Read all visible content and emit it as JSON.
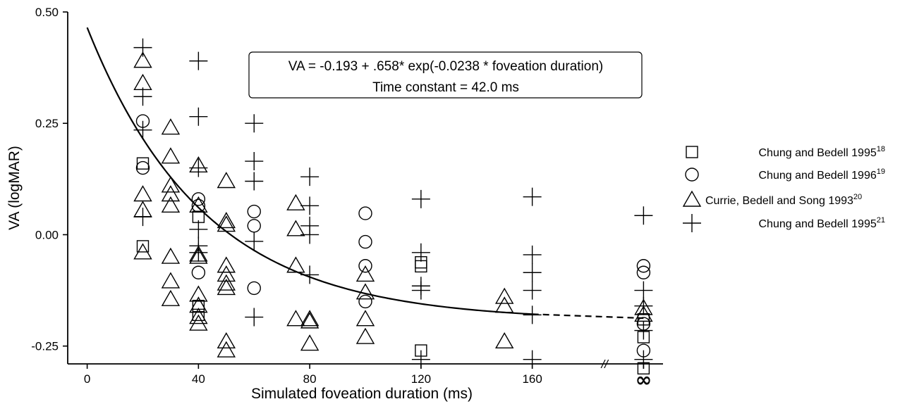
{
  "chart_data": {
    "type": "scatter",
    "xlabel": "Simulated foveation duration (ms)",
    "ylabel": "VA (logMAR)",
    "x_ticks": [
      "0",
      "40",
      "80",
      "120",
      "160",
      "∞"
    ],
    "x_tick_values": [
      0,
      40,
      80,
      120,
      160,
      200
    ],
    "y_ticks": [
      "0.50",
      "0.25",
      "0.00",
      "-0.25"
    ],
    "y_tick_values": [
      0.5,
      0.25,
      0.0,
      -0.25
    ],
    "xlim": [
      -7,
      207
    ],
    "ylim": [
      -0.29,
      0.5
    ],
    "axis_break_label": "//",
    "axis_break_x": 186,
    "annotation": {
      "line1": "VA = -0.193 + .658* exp(-0.0238 * foveation duration)",
      "line2": "Time constant = 42.0 ms"
    },
    "fit": {
      "intercept": -0.193,
      "amplitude": 0.658,
      "rate": 0.0238,
      "solid_range": [
        0,
        160
      ],
      "dashed_range": [
        160,
        200
      ]
    },
    "legend_position": "right",
    "series": [
      {
        "name": "Chung and Bedell 1995",
        "sup": "18",
        "marker": "square",
        "points": [
          [
            20,
            0.16
          ],
          [
            20,
            -0.026
          ],
          [
            40,
            0.04
          ],
          [
            40,
            -0.16
          ],
          [
            40,
            -0.18
          ],
          [
            120,
            -0.062
          ],
          [
            120,
            -0.071
          ],
          [
            120,
            -0.26
          ],
          [
            200,
            -0.19
          ],
          [
            200,
            -0.23
          ],
          [
            200,
            -0.3
          ]
        ]
      },
      {
        "name": "Chung and Bedell 1996",
        "sup": "19",
        "marker": "circle",
        "points": [
          [
            20,
            0.255
          ],
          [
            20,
            0.15
          ],
          [
            40,
            0.08
          ],
          [
            40,
            0.065
          ],
          [
            40,
            -0.085
          ],
          [
            60,
            0.052
          ],
          [
            60,
            0.02
          ],
          [
            60,
            -0.12
          ],
          [
            100,
            0.048
          ],
          [
            100,
            -0.016
          ],
          [
            100,
            -0.07
          ],
          [
            100,
            -0.15
          ],
          [
            200,
            -0.07
          ],
          [
            200,
            -0.085
          ],
          [
            200,
            -0.2
          ],
          [
            200,
            -0.26
          ]
        ]
      },
      {
        "name": "Currie, Bedell and Song 1993",
        "sup": "20",
        "marker": "triangle",
        "points": [
          [
            20,
            0.39
          ],
          [
            20,
            0.34
          ],
          [
            20,
            0.09
          ],
          [
            20,
            0.055
          ],
          [
            20,
            -0.04
          ],
          [
            30,
            0.24
          ],
          [
            30,
            0.175
          ],
          [
            30,
            0.11
          ],
          [
            30,
            0.09
          ],
          [
            30,
            0.065
          ],
          [
            30,
            -0.05
          ],
          [
            30,
            -0.105
          ],
          [
            30,
            -0.145
          ],
          [
            40,
            0.155
          ],
          [
            40,
            0.065
          ],
          [
            40,
            -0.045
          ],
          [
            40,
            -0.05
          ],
          [
            40,
            -0.135
          ],
          [
            40,
            -0.16
          ],
          [
            40,
            -0.185
          ],
          [
            40,
            -0.2
          ],
          [
            50,
            0.12
          ],
          [
            50,
            0.03
          ],
          [
            50,
            0.022
          ],
          [
            50,
            -0.07
          ],
          [
            50,
            -0.09
          ],
          [
            50,
            -0.11
          ],
          [
            50,
            -0.12
          ],
          [
            50,
            -0.24
          ],
          [
            50,
            -0.26
          ],
          [
            75,
            0.07
          ],
          [
            75,
            0.012
          ],
          [
            75,
            -0.07
          ],
          [
            75,
            -0.19
          ],
          [
            80,
            -0.19
          ],
          [
            80,
            -0.195
          ],
          [
            80,
            -0.245
          ],
          [
            100,
            -0.09
          ],
          [
            100,
            -0.13
          ],
          [
            100,
            -0.19
          ],
          [
            100,
            -0.23
          ],
          [
            150,
            -0.14
          ],
          [
            150,
            -0.16
          ],
          [
            150,
            -0.24
          ],
          [
            200,
            -0.165
          ],
          [
            200,
            -0.18
          ]
        ]
      },
      {
        "name": "Chung and Bedell 1995",
        "sup": "21",
        "marker": "plus",
        "points": [
          [
            20,
            0.42
          ],
          [
            20,
            0.31
          ],
          [
            20,
            0.235
          ],
          [
            20,
            0.04
          ],
          [
            40,
            0.39
          ],
          [
            40,
            0.265
          ],
          [
            40,
            0.15
          ],
          [
            40,
            0.012
          ],
          [
            40,
            -0.025
          ],
          [
            40,
            -0.04
          ],
          [
            60,
            0.25
          ],
          [
            60,
            0.165
          ],
          [
            60,
            0.12
          ],
          [
            60,
            -0.015
          ],
          [
            60,
            -0.185
          ],
          [
            80,
            0.13
          ],
          [
            80,
            0.065
          ],
          [
            80,
            0.02
          ],
          [
            80,
            0.0
          ],
          [
            80,
            -0.09
          ],
          [
            120,
            0.08
          ],
          [
            120,
            -0.04
          ],
          [
            120,
            -0.115
          ],
          [
            120,
            -0.125
          ],
          [
            120,
            -0.28
          ],
          [
            160,
            0.085
          ],
          [
            160,
            -0.045
          ],
          [
            160,
            -0.085
          ],
          [
            160,
            -0.125
          ],
          [
            160,
            -0.18
          ],
          [
            160,
            -0.28
          ],
          [
            200,
            0.043
          ],
          [
            200,
            -0.125
          ],
          [
            200,
            -0.16
          ],
          [
            200,
            -0.215
          ],
          [
            200,
            -0.28
          ]
        ]
      }
    ]
  }
}
